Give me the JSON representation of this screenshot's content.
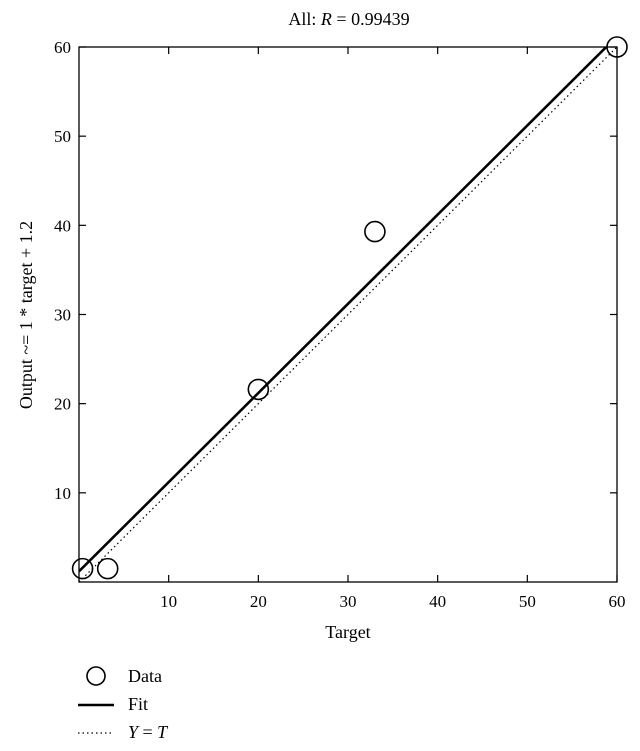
{
  "chart_data": {
    "type": "scatter",
    "title": {
      "prefix": "All: ",
      "var": "R",
      "suffix": " = 0.99439"
    },
    "xlabel": "Target",
    "ylabel": "Output ~= 1 * target + 1.2",
    "xlim": [
      0,
      60
    ],
    "ylim": [
      0,
      60
    ],
    "xticks": [
      10,
      20,
      30,
      40,
      50,
      60
    ],
    "yticks": [
      10,
      20,
      30,
      40,
      50,
      60
    ],
    "grid": false,
    "legend_position": "bottom-left",
    "series": [
      {
        "name": "Data",
        "kind": "points",
        "x": [
          0.4,
          3.2,
          20.0,
          33.0,
          60.0
        ],
        "y": [
          1.5,
          1.5,
          21.6,
          39.3,
          60.0
        ]
      },
      {
        "name": "Fit",
        "kind": "line",
        "slope": 1.0,
        "intercept": 1.2
      },
      {
        "name": "Y = T",
        "kind": "identity",
        "var_y": "Y",
        "var_t": "T"
      }
    ],
    "colors": {
      "marks": "#000000"
    }
  }
}
